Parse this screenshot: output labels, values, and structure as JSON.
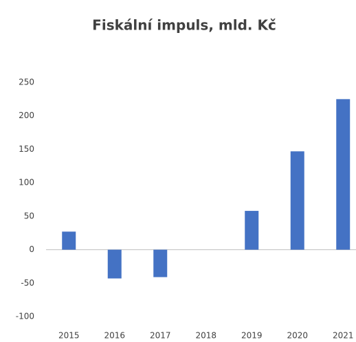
{
  "chart_data": {
    "type": "bar",
    "title": "Fiskální impuls, mld. Kč",
    "categories": [
      "2015",
      "2016",
      "2017",
      "2018",
      "2019",
      "2020",
      "2021"
    ],
    "values": [
      27,
      -43,
      -41,
      0,
      58,
      147,
      225
    ],
    "color": "#4472c4",
    "ylim": [
      -100,
      250
    ],
    "yticks": [
      -100,
      -50,
      0,
      50,
      100,
      150,
      200,
      250
    ],
    "grid": false
  }
}
